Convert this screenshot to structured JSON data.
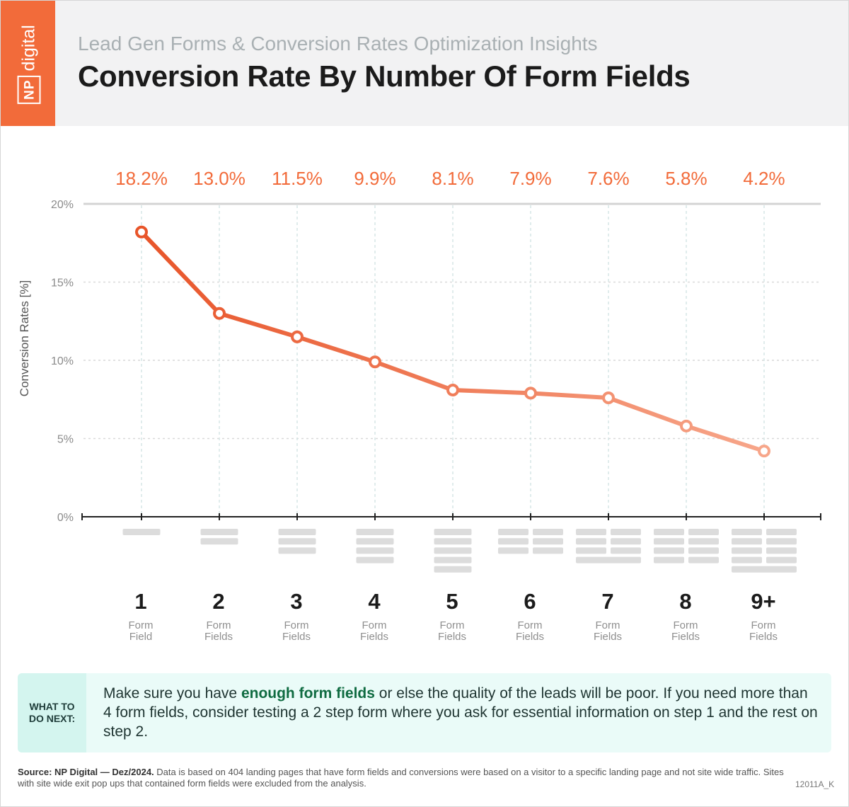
{
  "header": {
    "logo_np": "NP",
    "logo_digital": "digital",
    "subtitle": "Lead Gen Forms & Conversion Rates Optimization Insights",
    "title": "Conversion Rate By Number Of Form Fields"
  },
  "colors": {
    "accent": "#f26b3a",
    "line_start": "#e8552a",
    "line_end": "#f7a68a",
    "cta_bg": "#eafbf8",
    "cta_label_bg": "#d4f5ef",
    "cta_emphasis": "#0f6b41"
  },
  "chart_data": {
    "type": "line",
    "ylabel": "Conversion Rates [%]",
    "ylim": [
      0,
      20
    ],
    "yticks": [
      "0%",
      "5%",
      "10%",
      "15%",
      "20%"
    ],
    "ytick_values": [
      0,
      5,
      10,
      15,
      20
    ],
    "grid": true,
    "categories": [
      "1",
      "2",
      "3",
      "4",
      "5",
      "6",
      "7",
      "8",
      "9+"
    ],
    "category_units": [
      "Form Field",
      "Form Fields",
      "Form Fields",
      "Form Fields",
      "Form Fields",
      "Form Fields",
      "Form Fields",
      "Form Fields",
      "Form Fields"
    ],
    "values": [
      18.2,
      13.0,
      11.5,
      9.9,
      8.1,
      7.9,
      7.6,
      5.8,
      4.2
    ],
    "value_labels": [
      "18.2%",
      "13.0%",
      "11.5%",
      "9.9%",
      "8.1%",
      "7.9%",
      "7.6%",
      "5.8%",
      "4.2%"
    ],
    "field_counts": [
      1,
      2,
      3,
      4,
      5,
      6,
      7,
      8,
      9
    ]
  },
  "cta": {
    "label_line1": "WHAT TO",
    "label_line2": "DO NEXT:",
    "text_before": "Make sure you have ",
    "text_bold": "enough form fields",
    "text_after": " or else the quality of the leads will be poor. If you need more than 4 form fields, consider testing a 2 step form where you ask for essential information on step 1 and the rest on step 2."
  },
  "footer": {
    "source_bold": "Source:  NP Digital — Dez/2024.",
    "source_text": " Data is based on 404 landing pages that have form fields and conversions were based on a visitor to a specific landing page and not site wide traffic. Sites with site wide exit pop ups that contained form fields were excluded from the analysis.",
    "code": "12011A_K"
  }
}
